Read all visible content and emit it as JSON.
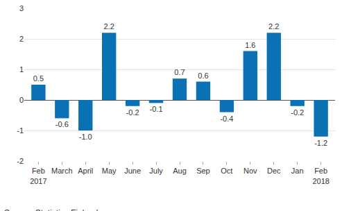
{
  "chart_data": {
    "type": "bar",
    "categories": [
      "Feb\n2017",
      "March",
      "April",
      "May",
      "June",
      "July",
      "Aug",
      "Sep",
      "Oct",
      "Nov",
      "Dec",
      "Jan",
      "Feb\n2018"
    ],
    "values": [
      0.5,
      -0.6,
      -1.0,
      2.2,
      -0.2,
      -0.1,
      0.7,
      0.6,
      -0.4,
      1.6,
      2.2,
      -0.2,
      -1.2
    ],
    "value_labels": [
      "0.5",
      "-0.6",
      "-1.0",
      "2.2",
      "-0.2",
      "-0.1",
      "0.7",
      "0.6",
      "-0.4",
      "1.6",
      "2.2",
      "-0.2",
      "-1.2"
    ],
    "data_labels": true,
    "color": "#0a72b4",
    "ylim": [
      -2,
      3
    ],
    "yticks": [
      -2,
      -1,
      0,
      1,
      2,
      3
    ],
    "grid": true,
    "annotations": [
      "Source: Statistics Finland"
    ]
  }
}
